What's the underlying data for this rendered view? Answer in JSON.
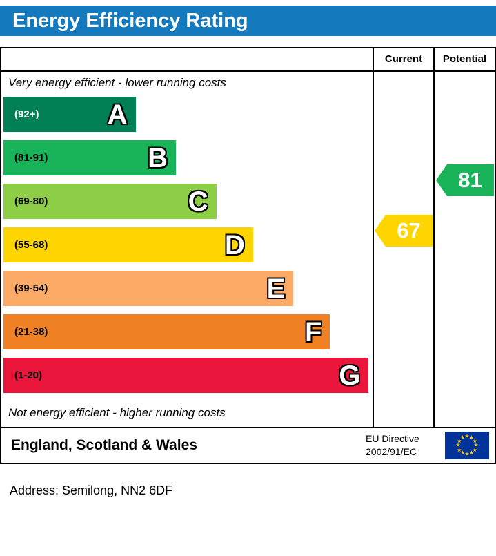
{
  "header": {
    "title": "Energy Efficiency Rating"
  },
  "colors": {
    "banner": "#1479bd",
    "flag_bg": "#003399",
    "flag_star": "#ffcc00"
  },
  "chart": {
    "columns": {
      "current": "Current",
      "potential": "Potential"
    },
    "top_note": "Very energy efficient - lower running costs",
    "bottom_note": "Not energy efficient - higher running costs",
    "bands": [
      {
        "letter": "A",
        "range": "(92+)",
        "color": "#008054",
        "range_color": "#ffffff",
        "width_pct": 36
      },
      {
        "letter": "B",
        "range": "(81-91)",
        "color": "#19b459",
        "range_color": "#000000",
        "width_pct": 47
      },
      {
        "letter": "C",
        "range": "(69-80)",
        "color": "#8dce46",
        "range_color": "#000000",
        "width_pct": 58
      },
      {
        "letter": "D",
        "range": "(55-68)",
        "color": "#ffd500",
        "range_color": "#000000",
        "width_pct": 68
      },
      {
        "letter": "E",
        "range": "(39-54)",
        "color": "#fcaa65",
        "range_color": "#000000",
        "width_pct": 79
      },
      {
        "letter": "F",
        "range": "(21-38)",
        "color": "#ef8023",
        "range_color": "#000000",
        "width_pct": 89
      },
      {
        "letter": "G",
        "range": "(1-20)",
        "color": "#e9153b",
        "range_color": "#000000",
        "width_pct": 99.5
      }
    ],
    "current": {
      "label": "Current",
      "value": "67",
      "color": "#ffd500",
      "band": "D"
    },
    "potential": {
      "label": "Potential",
      "value": "81",
      "color": "#19b459",
      "band": "B"
    }
  },
  "footer": {
    "region": "England, Scotland & Wales",
    "directive_line1": "EU Directive",
    "directive_line2": "2002/91/EC"
  },
  "address": "Address: Semilong, NN2 6DF",
  "chart_data": {
    "type": "bar",
    "title": "Energy Efficiency Rating",
    "categories": [
      "A (92+)",
      "B (81-91)",
      "C (69-80)",
      "D (55-68)",
      "E (39-54)",
      "F (21-38)",
      "G (1-20)"
    ],
    "values": [
      36,
      47,
      58,
      68,
      79,
      89,
      99.5
    ],
    "band_colors": [
      "#008054",
      "#19b459",
      "#8dce46",
      "#ffd500",
      "#fcaa65",
      "#ef8023",
      "#e9153b"
    ],
    "markers": {
      "current": 67,
      "potential": 81
    },
    "columns": [
      "Current",
      "Potential"
    ],
    "top_note": "Very energy efficient - lower running costs",
    "bottom_note": "Not energy efficient - higher running costs",
    "region": "England, Scotland & Wales",
    "legend_position": "none",
    "grid": false
  }
}
